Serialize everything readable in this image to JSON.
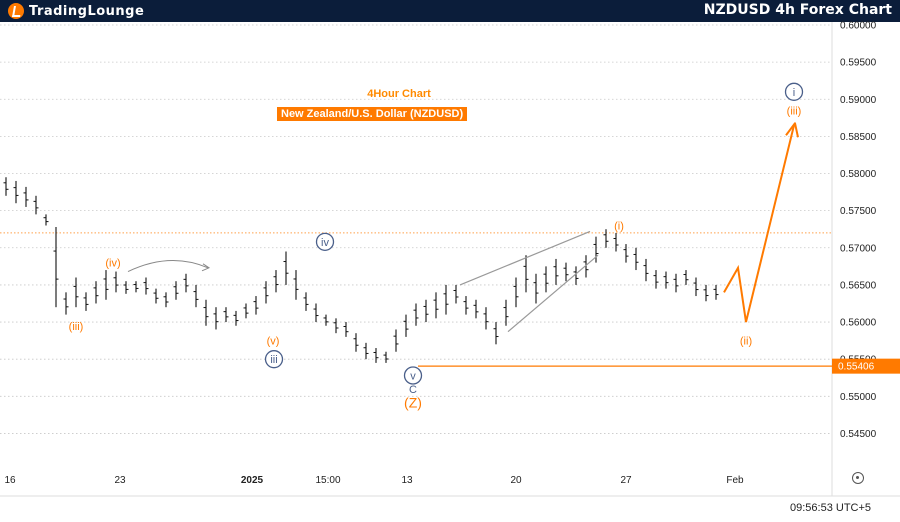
{
  "header": {
    "logo_text": "TradingLounge",
    "title": "NZDUSD 4h Forex Chart"
  },
  "annotations": {
    "subtitle": "4Hour Chart",
    "instrument": "New Zealand/U.S. Dollar (NZDUSD)"
  },
  "colors": {
    "header_bg": "#0b1d3a",
    "accent_orange": "#ff7a00",
    "wave_blue": "#4a5f8a",
    "candle": "#111111",
    "grid": "#c8c8c8"
  },
  "footer": {
    "time": "09:56:53 UTC+5"
  },
  "chart_data": {
    "type": "line",
    "instrument": "NZDUSD",
    "timeframe": "4h",
    "ylim": [
      0.5425,
      0.6
    ],
    "y_ticks": [
      "0.60000",
      "0.59500",
      "0.59000",
      "0.58500",
      "0.58000",
      "0.57500",
      "0.57000",
      "0.56500",
      "0.56000",
      "0.55500",
      "0.55000",
      "0.54500"
    ],
    "x_ticks": [
      "16",
      "23",
      "2025",
      "15:00",
      "13",
      "20",
      "27",
      "Feb"
    ],
    "current_price": "0.55406",
    "resistance_level": 0.572,
    "support_level": 0.55406,
    "price_path": [
      [
        0.577,
        0.5795
      ],
      [
        0.576,
        0.579
      ],
      [
        0.5755,
        0.5782
      ],
      [
        0.5745,
        0.577
      ],
      [
        0.573,
        0.5745
      ],
      [
        0.562,
        0.5728
      ],
      [
        0.561,
        0.564
      ],
      [
        0.562,
        0.566
      ],
      [
        0.5615,
        0.564
      ],
      [
        0.5625,
        0.5655
      ],
      [
        0.563,
        0.567
      ],
      [
        0.564,
        0.5668
      ],
      [
        0.5638,
        0.5655
      ],
      [
        0.564,
        0.5655
      ],
      [
        0.5637,
        0.566
      ],
      [
        0.5625,
        0.5645
      ],
      [
        0.562,
        0.564
      ],
      [
        0.563,
        0.5655
      ],
      [
        0.564,
        0.5665
      ],
      [
        0.562,
        0.565
      ],
      [
        0.5595,
        0.563
      ],
      [
        0.559,
        0.562
      ],
      [
        0.56,
        0.562
      ],
      [
        0.5595,
        0.5615
      ],
      [
        0.5605,
        0.5625
      ],
      [
        0.561,
        0.5635
      ],
      [
        0.5625,
        0.5655
      ],
      [
        0.564,
        0.567
      ],
      [
        0.565,
        0.5695
      ],
      [
        0.563,
        0.567
      ],
      [
        0.5615,
        0.564
      ],
      [
        0.56,
        0.5625
      ],
      [
        0.5595,
        0.561
      ],
      [
        0.5585,
        0.5605
      ],
      [
        0.558,
        0.56
      ],
      [
        0.556,
        0.5585
      ],
      [
        0.555,
        0.5572
      ],
      [
        0.5545,
        0.5565
      ],
      [
        0.5545,
        0.556
      ],
      [
        0.556,
        0.559
      ],
      [
        0.558,
        0.561
      ],
      [
        0.5595,
        0.5625
      ],
      [
        0.56,
        0.563
      ],
      [
        0.5605,
        0.564
      ],
      [
        0.561,
        0.565
      ],
      [
        0.5625,
        0.565
      ],
      [
        0.561,
        0.5635
      ],
      [
        0.5605,
        0.563
      ],
      [
        0.559,
        0.562
      ],
      [
        0.557,
        0.56
      ],
      [
        0.5595,
        0.563
      ],
      [
        0.562,
        0.566
      ],
      [
        0.564,
        0.569
      ],
      [
        0.5625,
        0.5665
      ],
      [
        0.564,
        0.5675
      ],
      [
        0.565,
        0.5685
      ],
      [
        0.5655,
        0.568
      ],
      [
        0.565,
        0.5675
      ],
      [
        0.566,
        0.569
      ],
      [
        0.568,
        0.5715
      ],
      [
        0.57,
        0.5725
      ],
      [
        0.5695,
        0.572
      ],
      [
        0.568,
        0.5705
      ],
      [
        0.567,
        0.57
      ],
      [
        0.5655,
        0.5685
      ],
      [
        0.5645,
        0.567
      ],
      [
        0.5645,
        0.5668
      ],
      [
        0.564,
        0.5665
      ],
      [
        0.565,
        0.567
      ],
      [
        0.5635,
        0.566
      ],
      [
        0.5628,
        0.565
      ],
      [
        0.563,
        0.565
      ]
    ],
    "projection_path": [
      0.564,
      0.5673,
      0.56,
      0.5865
    ],
    "wave_labels": [
      {
        "text": "i",
        "style": "circled",
        "color": "blue",
        "price": 0.591,
        "at": "projection"
      },
      {
        "text": "(iii)",
        "style": "paren",
        "color": "orange",
        "price": 0.5885,
        "at": "projection"
      },
      {
        "text": "(iv)",
        "style": "paren",
        "color": "orange",
        "price": 0.568,
        "at": "bar-23"
      },
      {
        "text": "(iii)",
        "style": "paren",
        "color": "orange",
        "price": 0.5595,
        "at": "bar-5"
      },
      {
        "text": "iv",
        "style": "circled",
        "color": "blue",
        "price": 0.5708,
        "at": "bar-28"
      },
      {
        "text": "(v)",
        "style": "paren",
        "color": "orange",
        "price": 0.5575,
        "at": "bar-19"
      },
      {
        "text": "iii",
        "style": "circled",
        "color": "blue",
        "price": 0.555,
        "at": "bar-19"
      },
      {
        "text": "(i)",
        "style": "paren",
        "color": "orange",
        "price": 0.573,
        "at": "bar-60"
      },
      {
        "text": "(ii)",
        "style": "paren",
        "color": "orange",
        "price": 0.5575,
        "at": "projection"
      },
      {
        "text": "v",
        "style": "circled",
        "color": "blue",
        "price": 0.5528,
        "at": "bar-38"
      },
      {
        "text": "C",
        "style": "plain",
        "color": "blue",
        "price": 0.551,
        "at": "bar-38"
      },
      {
        "text": "(Z)",
        "style": "paren",
        "color": "orange",
        "price": 0.549,
        "at": "bar-38"
      }
    ]
  }
}
